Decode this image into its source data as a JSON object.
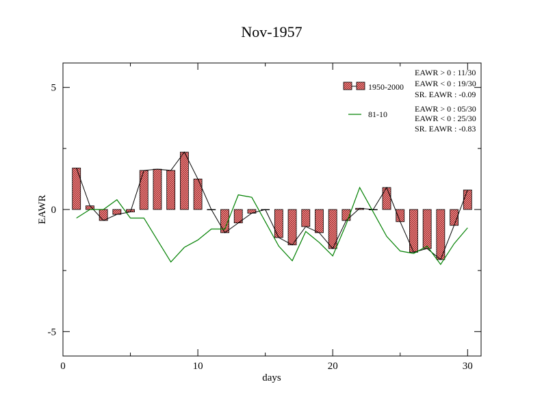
{
  "chart_data": {
    "type": "bar",
    "title": "Nov-1957",
    "xlabel": "days",
    "ylabel": "EAWR",
    "xlim": [
      0,
      31
    ],
    "ylim": [
      -6,
      6
    ],
    "xticks": [
      0,
      10,
      20,
      30
    ],
    "xtick_labels": [
      "0",
      "10",
      "20",
      "30"
    ],
    "yticks": [
      5,
      0,
      -5
    ],
    "ytick_labels": [
      "5",
      "0",
      "-5"
    ],
    "days": [
      1,
      2,
      3,
      4,
      5,
      6,
      7,
      8,
      9,
      10,
      11,
      12,
      13,
      14,
      15,
      16,
      17,
      18,
      19,
      20,
      21,
      22,
      23,
      24,
      25,
      26,
      27,
      28,
      29,
      30
    ],
    "series": [
      {
        "name": "1950-2000",
        "kind": "bar",
        "color": "#f08080",
        "values": [
          1.7,
          0.15,
          -0.45,
          -0.2,
          -0.1,
          1.6,
          1.65,
          1.6,
          2.35,
          1.25,
          0.0,
          -0.95,
          -0.55,
          -0.15,
          0.0,
          -1.15,
          -1.45,
          -0.7,
          -0.95,
          -1.6,
          -0.45,
          0.05,
          0.0,
          0.9,
          -0.5,
          -1.75,
          -1.6,
          -2.05,
          -0.65,
          0.8
        ]
      },
      {
        "name": "81-10",
        "kind": "line",
        "color": "#008000",
        "values": [
          -0.35,
          0.0,
          0.0,
          0.4,
          -0.35,
          -0.35,
          -1.25,
          -2.15,
          -1.55,
          -1.25,
          -0.8,
          -0.8,
          0.6,
          0.5,
          -0.5,
          -1.5,
          -2.1,
          -0.9,
          -1.35,
          -1.9,
          -0.6,
          0.9,
          -0.1,
          -1.1,
          -1.7,
          -1.8,
          -1.5,
          -2.25,
          -1.4,
          -0.75
        ]
      }
    ],
    "legend": [
      {
        "label": "1950-2000",
        "stats": [
          "EAWR > 0 : 11/30",
          "EAWR < 0 : 19/30",
          "SR. EAWR : -0.09"
        ]
      },
      {
        "label": "81-10",
        "stats": [
          "EAWR > 0 : 05/30",
          "EAWR < 0 : 25/30",
          "SR. EAWR : -0.83"
        ]
      }
    ],
    "legend_position": "top-right"
  }
}
